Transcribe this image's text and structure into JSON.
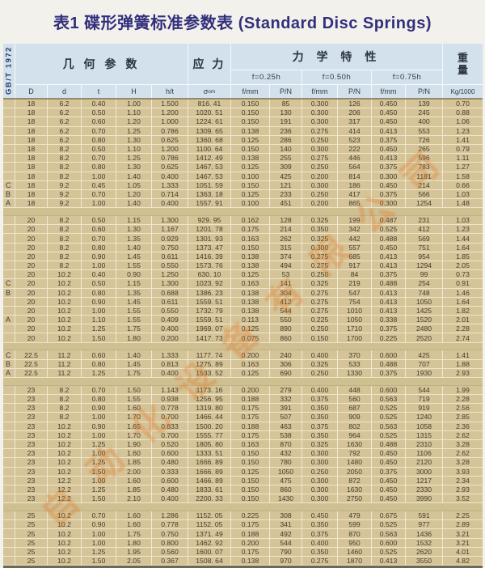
{
  "page_title": "表1 碟形弹簧标准参数表 (Standard Disc Springs)",
  "standard": "GB/T 1972",
  "colors": {
    "page_bg": "#f3f1ec",
    "title_text": "#322f7c",
    "header_bg": "#d2e1eb",
    "body_bg": "#d5c498",
    "watermark": "#df7c29"
  },
  "watermark_text": "自动化设备有限公司",
  "header": {
    "geometry": "几 何 参 数",
    "stress": "应 力",
    "mechanical": "力 学 特 性",
    "weight_lines": [
      "重",
      "量"
    ],
    "f_labels": [
      "f=0.25h",
      "f=0.50h",
      "f=0.75h"
    ],
    "columns": [
      "D",
      "d",
      "t",
      "H",
      "h/t",
      {
        "main": "σ",
        "sub": "om"
      },
      "f/mm",
      "P/N",
      "f/mm",
      "P/N",
      "f/mm",
      "P/N",
      "Kg/1000"
    ]
  },
  "table": {
    "groups": [
      {
        "rows": [
          {
            "grade": "",
            "cells": [
              "18",
              "6.2",
              "0.40",
              "1.00",
              "1.500",
              "816. 41",
              "0.150",
              "85",
              "0.300",
              "126",
              "0.450",
              "139",
              "0.70"
            ]
          },
          {
            "grade": "",
            "cells": [
              "18",
              "6.2",
              "0.50",
              "1.10",
              "1.200",
              "1020. 51",
              "0.150",
              "130",
              "0.300",
              "206",
              "0.450",
              "245",
              "0.88"
            ]
          },
          {
            "grade": "",
            "cells": [
              "18",
              "6.2",
              "0.60",
              "1.20",
              "1.000",
              "1224. 61",
              "0.150",
              "191",
              "0.300",
              "317",
              "0.450",
              "400",
              "1.06"
            ]
          },
          {
            "grade": "",
            "cells": [
              "18",
              "6.2",
              "0.70",
              "1.25",
              "0.786",
              "1309. 65",
              "0.138",
              "236",
              "0.275",
              "414",
              "0.413",
              "553",
              "1.23"
            ]
          },
          {
            "grade": "",
            "cells": [
              "18",
              "6.2",
              "0.80",
              "1.30",
              "0.625",
              "1360. 68",
              "0.125",
              "286",
              "0.250",
              "523",
              "0.375",
              "726",
              "1.41"
            ]
          },
          {
            "grade": "",
            "cells": [
              "18",
              "8.2",
              "0.50",
              "1.10",
              "1.200",
              "1100. 64",
              "0.150",
              "140",
              "0.300",
              "222",
              "0.450",
              "265",
              "0.79"
            ]
          },
          {
            "grade": "",
            "cells": [
              "18",
              "8.2",
              "0.70",
              "1.25",
              "0.786",
              "1412. 49",
              "0.138",
              "255",
              "0.275",
              "446",
              "0.413",
              "596",
              "1.11"
            ]
          },
          {
            "grade": "",
            "cells": [
              "18",
              "8.2",
              "0.80",
              "1.30",
              "0.625",
              "1467. 53",
              "0.125",
              "309",
              "0.250",
              "564",
              "0.375",
              "783",
              "1.27"
            ]
          },
          {
            "grade": "",
            "cells": [
              "18",
              "8.2",
              "1.00",
              "1.40",
              "0.400",
              "1467. 53",
              "0.100",
              "425",
              "0.200",
              "814",
              "0.300",
              "1181",
              "1.58"
            ]
          },
          {
            "grade": "C",
            "cells": [
              "18",
              "9.2",
              "0.45",
              "1.05",
              "1.333",
              "1051. 59",
              "0.150",
              "121",
              "0.300",
              "186",
              "0.450",
              "214",
              "0.66"
            ]
          },
          {
            "grade": "B",
            "cells": [
              "18",
              "9.2",
              "0.70",
              "1.20",
              "0.714",
              "1363. 18",
              "0.125",
              "233",
              "0.250",
              "417",
              "0.375",
              "566",
              "1.03"
            ]
          },
          {
            "grade": "A",
            "cells": [
              "18",
              "9.2",
              "1.00",
              "1.40",
              "0.400",
              "1557. 91",
              "0.100",
              "451",
              "0.200",
              "865",
              "0.300",
              "1254",
              "1.48"
            ]
          }
        ]
      },
      {
        "rows": [
          {
            "grade": "",
            "cells": [
              "20",
              "8.2",
              "0.50",
              "1.15",
              "1.300",
              "929. 95",
              "0.162",
              "128",
              "0.325",
              "199",
              "0.487",
              "231",
              "1.03"
            ]
          },
          {
            "grade": "",
            "cells": [
              "20",
              "8.2",
              "0.60",
              "1.30",
              "1.167",
              "1201. 78",
              "0.175",
              "214",
              "0.350",
              "342",
              "0.525",
              "412",
              "1.23"
            ]
          },
          {
            "grade": "",
            "cells": [
              "20",
              "8.2",
              "0.70",
              "1.35",
              "0.929",
              "1301. 93",
              "0.163",
              "262",
              "0.325",
              "442",
              "0.488",
              "569",
              "1.44"
            ]
          },
          {
            "grade": "",
            "cells": [
              "20",
              "8.2",
              "0.80",
              "1.40",
              "0.750",
              "1373. 47",
              "0.150",
              "315",
              "0.300",
              "557",
              "0.450",
              "751",
              "1.64"
            ]
          },
          {
            "grade": "",
            "cells": [
              "20",
              "8.2",
              "0.90",
              "1.45",
              "0.611",
              "1416. 39",
              "0.138",
              "374",
              "0.275",
              "685",
              "0.413",
              "954",
              "1.85"
            ]
          },
          {
            "grade": "",
            "cells": [
              "20",
              "8.2",
              "1.00",
              "1.55",
              "0.550",
              "1573. 76",
              "0.138",
              "494",
              "0.275",
              "917",
              "0.413",
              "1294",
              "2.05"
            ]
          },
          {
            "grade": "",
            "cells": [
              "20",
              "10.2",
              "0.40",
              "0.90",
              "1.250",
              "630. 10",
              "0.125",
              "53",
              "0.250",
              "84",
              "0.375",
              "99",
              "0.73"
            ]
          },
          {
            "grade": "C",
            "cells": [
              "20",
              "10.2",
              "0.50",
              "1.15",
              "1.300",
              "1023. 92",
              "0.163",
              "141",
              "0.325",
              "219",
              "0.488",
              "254",
              "0.91"
            ]
          },
          {
            "grade": "B",
            "cells": [
              "20",
              "10.2",
              "0.80",
              "1.35",
              "0.688",
              "1386. 23",
              "0.138",
              "304",
              "0.275",
              "547",
              "0.413",
              "748",
              "1.46"
            ]
          },
          {
            "grade": "",
            "cells": [
              "20",
              "10.2",
              "0.90",
              "1.45",
              "0.611",
              "1559. 51",
              "0.138",
              "412",
              "0.275",
              "754",
              "0.413",
              "1050",
              "1.64"
            ]
          },
          {
            "grade": "",
            "cells": [
              "20",
              "10.2",
              "1.00",
              "1.55",
              "0.550",
              "1732. 79",
              "0.138",
              "544",
              "0.275",
              "1010",
              "0.413",
              "1425",
              "1.82"
            ]
          },
          {
            "grade": "A",
            "cells": [
              "20",
              "10.2",
              "1.10",
              "1.55",
              "0.409",
              "1559. 51",
              "0.113",
              "550",
              "0.225",
              "1050",
              "0.338",
              "1520",
              "2.01"
            ]
          },
          {
            "grade": "",
            "cells": [
              "20",
              "10.2",
              "1.25",
              "1.75",
              "0.400",
              "1969. 07",
              "0.125",
              "890",
              "0.250",
              "1710",
              "0.375",
              "2480",
              "2.28"
            ]
          },
          {
            "grade": "",
            "cells": [
              "20",
              "10.2",
              "1.50",
              "1.80",
              "0.200",
              "1417. 73",
              "0.075",
              "860",
              "0.150",
              "1700",
              "0.225",
              "2520",
              "2.74"
            ]
          }
        ]
      },
      {
        "rows": [
          {
            "grade": "C",
            "cells": [
              "22.5",
              "11.2",
              "0.60",
              "1.40",
              "1.333",
              "1177. 74",
              "0.200",
              "240",
              "0.400",
              "370",
              "0.600",
              "425",
              "1.41"
            ]
          },
          {
            "grade": "B",
            "cells": [
              "22.5",
              "11.2",
              "0.80",
              "1.45",
              "0.813",
              "1275. 89",
              "0.163",
              "306",
              "0.325",
              "533",
              "0.488",
              "707",
              "1.88"
            ]
          },
          {
            "grade": "A",
            "cells": [
              "22.5",
              "11.2",
              "1.25",
              "1.75",
              "0.400",
              "1533. 52",
              "0.125",
              "690",
              "0.250",
              "1330",
              "0.375",
              "1930",
              "2.93"
            ]
          }
        ]
      },
      {
        "rows": [
          {
            "grade": "",
            "cells": [
              "23",
              "8.2",
              "0.70",
              "1.50",
              "1.143",
              "1173. 16",
              "0.200",
              "279",
              "0.400",
              "448",
              "0.600",
              "544",
              "1.99"
            ]
          },
          {
            "grade": "",
            "cells": [
              "23",
              "8.2",
              "0.80",
              "1.55",
              "0.938",
              "1256. 95",
              "0.188",
              "332",
              "0.375",
              "560",
              "0.563",
              "719",
              "2.28"
            ]
          },
          {
            "grade": "",
            "cells": [
              "23",
              "8.2",
              "0.90",
              "1.60",
              "0.778",
              "1319. 80",
              "0.175",
              "391",
              "0.350",
              "687",
              "0.525",
              "919",
              "2.56"
            ]
          },
          {
            "grade": "",
            "cells": [
              "23",
              "8.2",
              "1.00",
              "1.70",
              "0.700",
              "1466. 44",
              "0.175",
              "507",
              "0.350",
              "909",
              "0.525",
              "1240",
              "2.85"
            ]
          },
          {
            "grade": "",
            "cells": [
              "23",
              "10.2",
              "0.90",
              "1.65",
              "0.833",
              "1500. 20",
              "0.188",
              "463",
              "0.375",
              "802",
              "0.563",
              "1058",
              "2.36"
            ]
          },
          {
            "grade": "",
            "cells": [
              "23",
              "10.2",
              "1.00",
              "1.70",
              "0.700",
              "1555. 77",
              "0.175",
              "538",
              "0.350",
              "964",
              "0.525",
              "1315",
              "2.62"
            ]
          },
          {
            "grade": "",
            "cells": [
              "23",
              "10.2",
              "1.25",
              "1.90",
              "0.520",
              "1805. 80",
              "0.163",
              "870",
              "0.325",
              "1630",
              "0.488",
              "2310",
              "3.28"
            ]
          },
          {
            "grade": "",
            "cells": [
              "23",
              "10.2",
              "1.00",
              "1.60",
              "0.600",
              "1333. 51",
              "0.150",
              "432",
              "0.300",
              "792",
              "0.450",
              "1106",
              "2.62"
            ]
          },
          {
            "grade": "",
            "cells": [
              "23",
              "10.2",
              "1.25",
              "1.85",
              "0.480",
              "1666. 89",
              "0.150",
              "780",
              "0.300",
              "1480",
              "0.450",
              "2120",
              "3.28"
            ]
          },
          {
            "grade": "",
            "cells": [
              "23",
              "10.2",
              "1.50",
              "2.00",
              "0.333",
              "1666. 89",
              "0.125",
              "1050",
              "0.250",
              "2050",
              "0.375",
              "3000",
              "3.93"
            ]
          },
          {
            "grade": "",
            "cells": [
              "23",
              "12.2",
              "1.00",
              "1.60",
              "0.600",
              "1466. 89",
              "0.150",
              "475",
              "0.300",
              "872",
              "0.450",
              "1217",
              "2.34"
            ]
          },
          {
            "grade": "",
            "cells": [
              "23",
              "12.2",
              "1.25",
              "1.85",
              "0.480",
              "1833. 61",
              "0.150",
              "860",
              "0.300",
              "1630",
              "0.450",
              "2330",
              "2.93"
            ]
          },
          {
            "grade": "",
            "cells": [
              "23",
              "12.2",
              "1.50",
              "2.10",
              "0.400",
              "2200. 33",
              "0.150",
              "1430",
              "0.300",
              "2750",
              "0.450",
              "3990",
              "3.52"
            ]
          }
        ]
      },
      {
        "rows": [
          {
            "grade": "",
            "cells": [
              "25",
              "10.2",
              "0.70",
              "1.60",
              "1.286",
              "1152. 05",
              "0.225",
              "308",
              "0.450",
              "479",
              "0.675",
              "591",
              "2.25"
            ]
          },
          {
            "grade": "",
            "cells": [
              "25",
              "10.2",
              "0.90",
              "1.60",
              "0.778",
              "1152. 05",
              "0.175",
              "341",
              "0.350",
              "599",
              "0.525",
              "977",
              "2.89"
            ]
          },
          {
            "grade": "",
            "cells": [
              "25",
              "10.2",
              "1.00",
              "1.75",
              "0.750",
              "1371. 49",
              "0.188",
              "492",
              "0.375",
              "870",
              "0.563",
              "1436",
              "3.21"
            ]
          },
          {
            "grade": "",
            "cells": [
              "25",
              "10.2",
              "1.00",
              "1.80",
              "0.800",
              "1462. 92",
              "0.200",
              "544",
              "0.400",
              "950",
              "0.600",
              "1532",
              "3.21"
            ]
          },
          {
            "grade": "",
            "cells": [
              "25",
              "10.2",
              "1.25",
              "1.95",
              "0.560",
              "1600. 07",
              "0.175",
              "790",
              "0.350",
              "1460",
              "0.525",
              "2620",
              "4.01"
            ]
          },
          {
            "grade": "",
            "cells": [
              "25",
              "10.2",
              "1.50",
              "2.05",
              "0.367",
              "1508. 64",
              "0.138",
              "970",
              "0.275",
              "1870",
              "0.413",
              "3550",
              "4.82"
            ]
          }
        ]
      }
    ]
  }
}
